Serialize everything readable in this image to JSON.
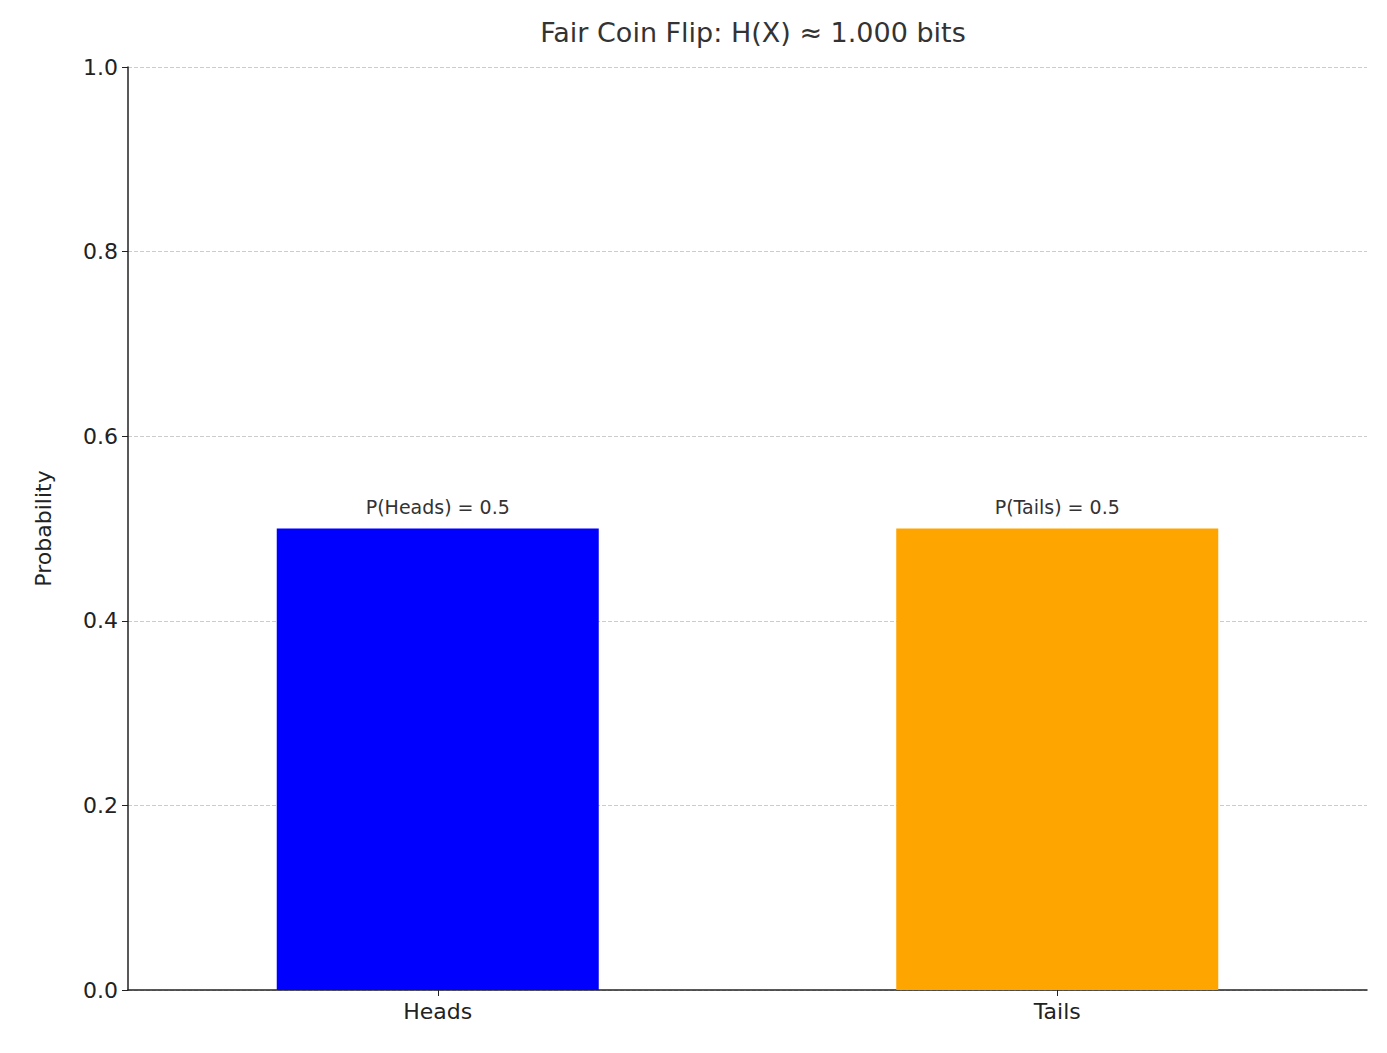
{
  "chart_data": {
    "type": "bar",
    "title": "Fair Coin Flip: H(X) ≈ 1.000 bits",
    "y_label": "Probability",
    "categories": [
      "Heads",
      "Tails"
    ],
    "values": [
      0.5,
      0.5
    ],
    "value_labels": [
      "P(Heads) = 0.5",
      "P(Tails) = 0.5"
    ],
    "data_labels": true,
    "colors": [
      "#0000ff",
      "#ffa500"
    ],
    "ylim": [
      0,
      1
    ],
    "yticks": [
      {
        "value": 0,
        "label": "0.0"
      },
      0.2,
      0.4,
      0.6,
      0.8,
      {
        "value": 1,
        "label": "1.0"
      }
    ],
    "grid": true
  }
}
